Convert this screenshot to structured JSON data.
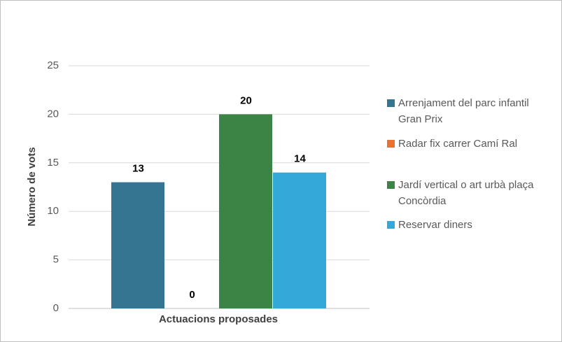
{
  "chart_data": {
    "type": "bar",
    "categories": [
      null
    ],
    "x_label": "Actuacions proposades",
    "y_label": "Número de vots",
    "series": [
      {
        "name": "Arrenjament del parc infantil Gran Prix",
        "color": "#367591",
        "values": [
          13
        ]
      },
      {
        "name": "Radar fix carrer Camí Ral",
        "color": "#e97132",
        "values": [
          0
        ]
      },
      {
        "name": "Jardí vertical o art urbà plaça Concòrdia",
        "color": "#3b8445",
        "values": [
          20
        ]
      },
      {
        "name": "Reservar diners",
        "color": "#34a9d9",
        "values": [
          14
        ]
      }
    ],
    "ylim": [
      0,
      25
    ],
    "yticks": [
      0,
      5,
      10,
      15,
      20,
      25
    ],
    "grid": true,
    "legend": "right"
  }
}
